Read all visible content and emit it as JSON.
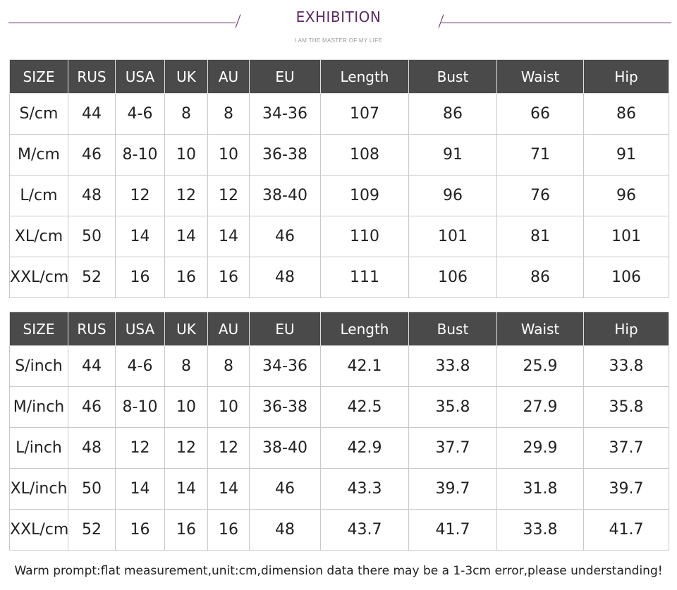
{
  "header": {
    "title": "EXHIBITION",
    "subtitle": "I AM THE MASTER OF MY LIFE"
  },
  "columns": [
    "SIZE",
    "RUS",
    "USA",
    "UK",
    "AU",
    "EU",
    "Length",
    "Bust",
    "Waist",
    "Hip"
  ],
  "table_cm": [
    [
      "S/cm",
      "44",
      "4-6",
      "8",
      "8",
      "34-36",
      "107",
      "86",
      "66",
      "86"
    ],
    [
      "M/cm",
      "46",
      "8-10",
      "10",
      "10",
      "36-38",
      "108",
      "91",
      "71",
      "91"
    ],
    [
      "L/cm",
      "48",
      "12",
      "12",
      "12",
      "38-40",
      "109",
      "96",
      "76",
      "96"
    ],
    [
      "XL/cm",
      "50",
      "14",
      "14",
      "14",
      "46",
      "110",
      "101",
      "81",
      "101"
    ],
    [
      "XXL/cm",
      "52",
      "16",
      "16",
      "16",
      "48",
      "111",
      "106",
      "86",
      "106"
    ]
  ],
  "table_inch": [
    [
      "S/inch",
      "44",
      "4-6",
      "8",
      "8",
      "34-36",
      "42.1",
      "33.8",
      "25.9",
      "33.8"
    ],
    [
      "M/inch",
      "46",
      "8-10",
      "10",
      "10",
      "36-38",
      "42.5",
      "35.8",
      "27.9",
      "35.8"
    ],
    [
      "L/inch",
      "48",
      "12",
      "12",
      "12",
      "38-40",
      "42.9",
      "37.7",
      "29.9",
      "37.7"
    ],
    [
      "XL/inch",
      "50",
      "14",
      "14",
      "14",
      "46",
      "43.3",
      "39.7",
      "31.8",
      "39.7"
    ],
    [
      "XXL/cm",
      "52",
      "16",
      "16",
      "16",
      "48",
      "43.7",
      "41.7",
      "33.8",
      "41.7"
    ]
  ],
  "note": "Warm prompt:flat measurement,unit:cm,dimension data there may be a 1-3cm error,please understanding!",
  "colors": {
    "accent": "#5a2a62",
    "header_bg": "#4a4a4a",
    "header_text": "#ffffff",
    "grid": "#c8c8c8"
  }
}
